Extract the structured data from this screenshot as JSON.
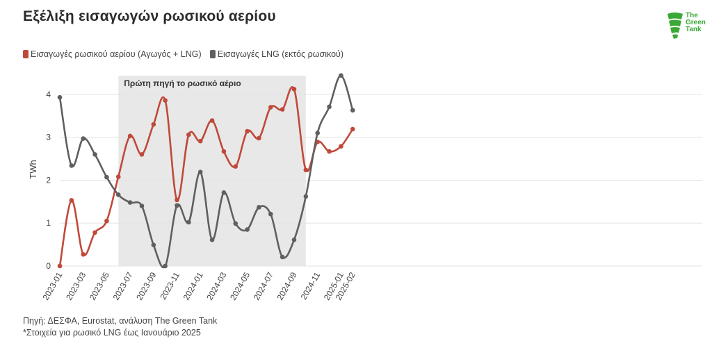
{
  "title": "Εξέλιξη εισαγωγών ρωσικού αερίου",
  "logo": {
    "line1": "The",
    "line2": "Green",
    "line3": "Tank",
    "color": "#3aa935"
  },
  "footer": {
    "source": "Πηγή: ΔΕΣΦΑ, Eurostat, ανάλυση The Green Tank",
    "note": "*Στοιχεία για ρωσικό LNG έως Ιανουάριο 2025"
  },
  "chart_data": {
    "type": "line",
    "ylabel": "TWh",
    "ylim": [
      0,
      4.5
    ],
    "yticks": [
      0,
      1,
      2,
      3,
      4
    ],
    "xticks": [
      "2023-01",
      "2023-03",
      "2023-05",
      "2023-07",
      "2023-09",
      "2023-11",
      "2024-01",
      "2024-03",
      "2024-05",
      "2024-07",
      "2024-09",
      "2024-11",
      "2025-01",
      "2025-02"
    ],
    "x": [
      "2023-01",
      "2023-02",
      "2023-03",
      "2023-04",
      "2023-05",
      "2023-06",
      "2023-07",
      "2023-08",
      "2023-09",
      "2023-10",
      "2023-11",
      "2023-12",
      "2024-01",
      "2024-02",
      "2024-03",
      "2024-04",
      "2024-05",
      "2024-06",
      "2024-07",
      "2024-08",
      "2024-09",
      "2024-10",
      "2024-11",
      "2024-12",
      "2025-01",
      "2025-02"
    ],
    "series": [
      {
        "name": "Εισαγωγές ρωσικού αερίου (Αγωγός + LNG)",
        "color": "#c0493a",
        "values": [
          0,
          1.53,
          0.27,
          0.78,
          1.05,
          2.08,
          3.03,
          2.6,
          3.3,
          3.86,
          1.54,
          3.06,
          2.91,
          3.39,
          2.67,
          2.32,
          3.14,
          2.98,
          3.7,
          3.65,
          4.12,
          2.24,
          2.89,
          2.67,
          2.79,
          3.19
        ]
      },
      {
        "name": "Εισαγωγές LNG (εκτός ρωσικού)",
        "color": "#5f5f5f",
        "values": [
          3.93,
          2.34,
          2.97,
          2.6,
          2.07,
          1.66,
          1.48,
          1.4,
          0.49,
          0,
          1.41,
          1.02,
          2.19,
          0.61,
          1.71,
          0.99,
          0.85,
          1.37,
          1.21,
          0.21,
          0.61,
          1.62,
          3.1,
          3.71,
          4.44,
          3.63
        ]
      }
    ],
    "annotation": {
      "label": "Πρώτη πηγή το ρωσικό αέριο",
      "from": "2023-06",
      "to": "2024-10",
      "color": "#e8e8e8"
    },
    "grid": true,
    "legend": "top-left"
  }
}
